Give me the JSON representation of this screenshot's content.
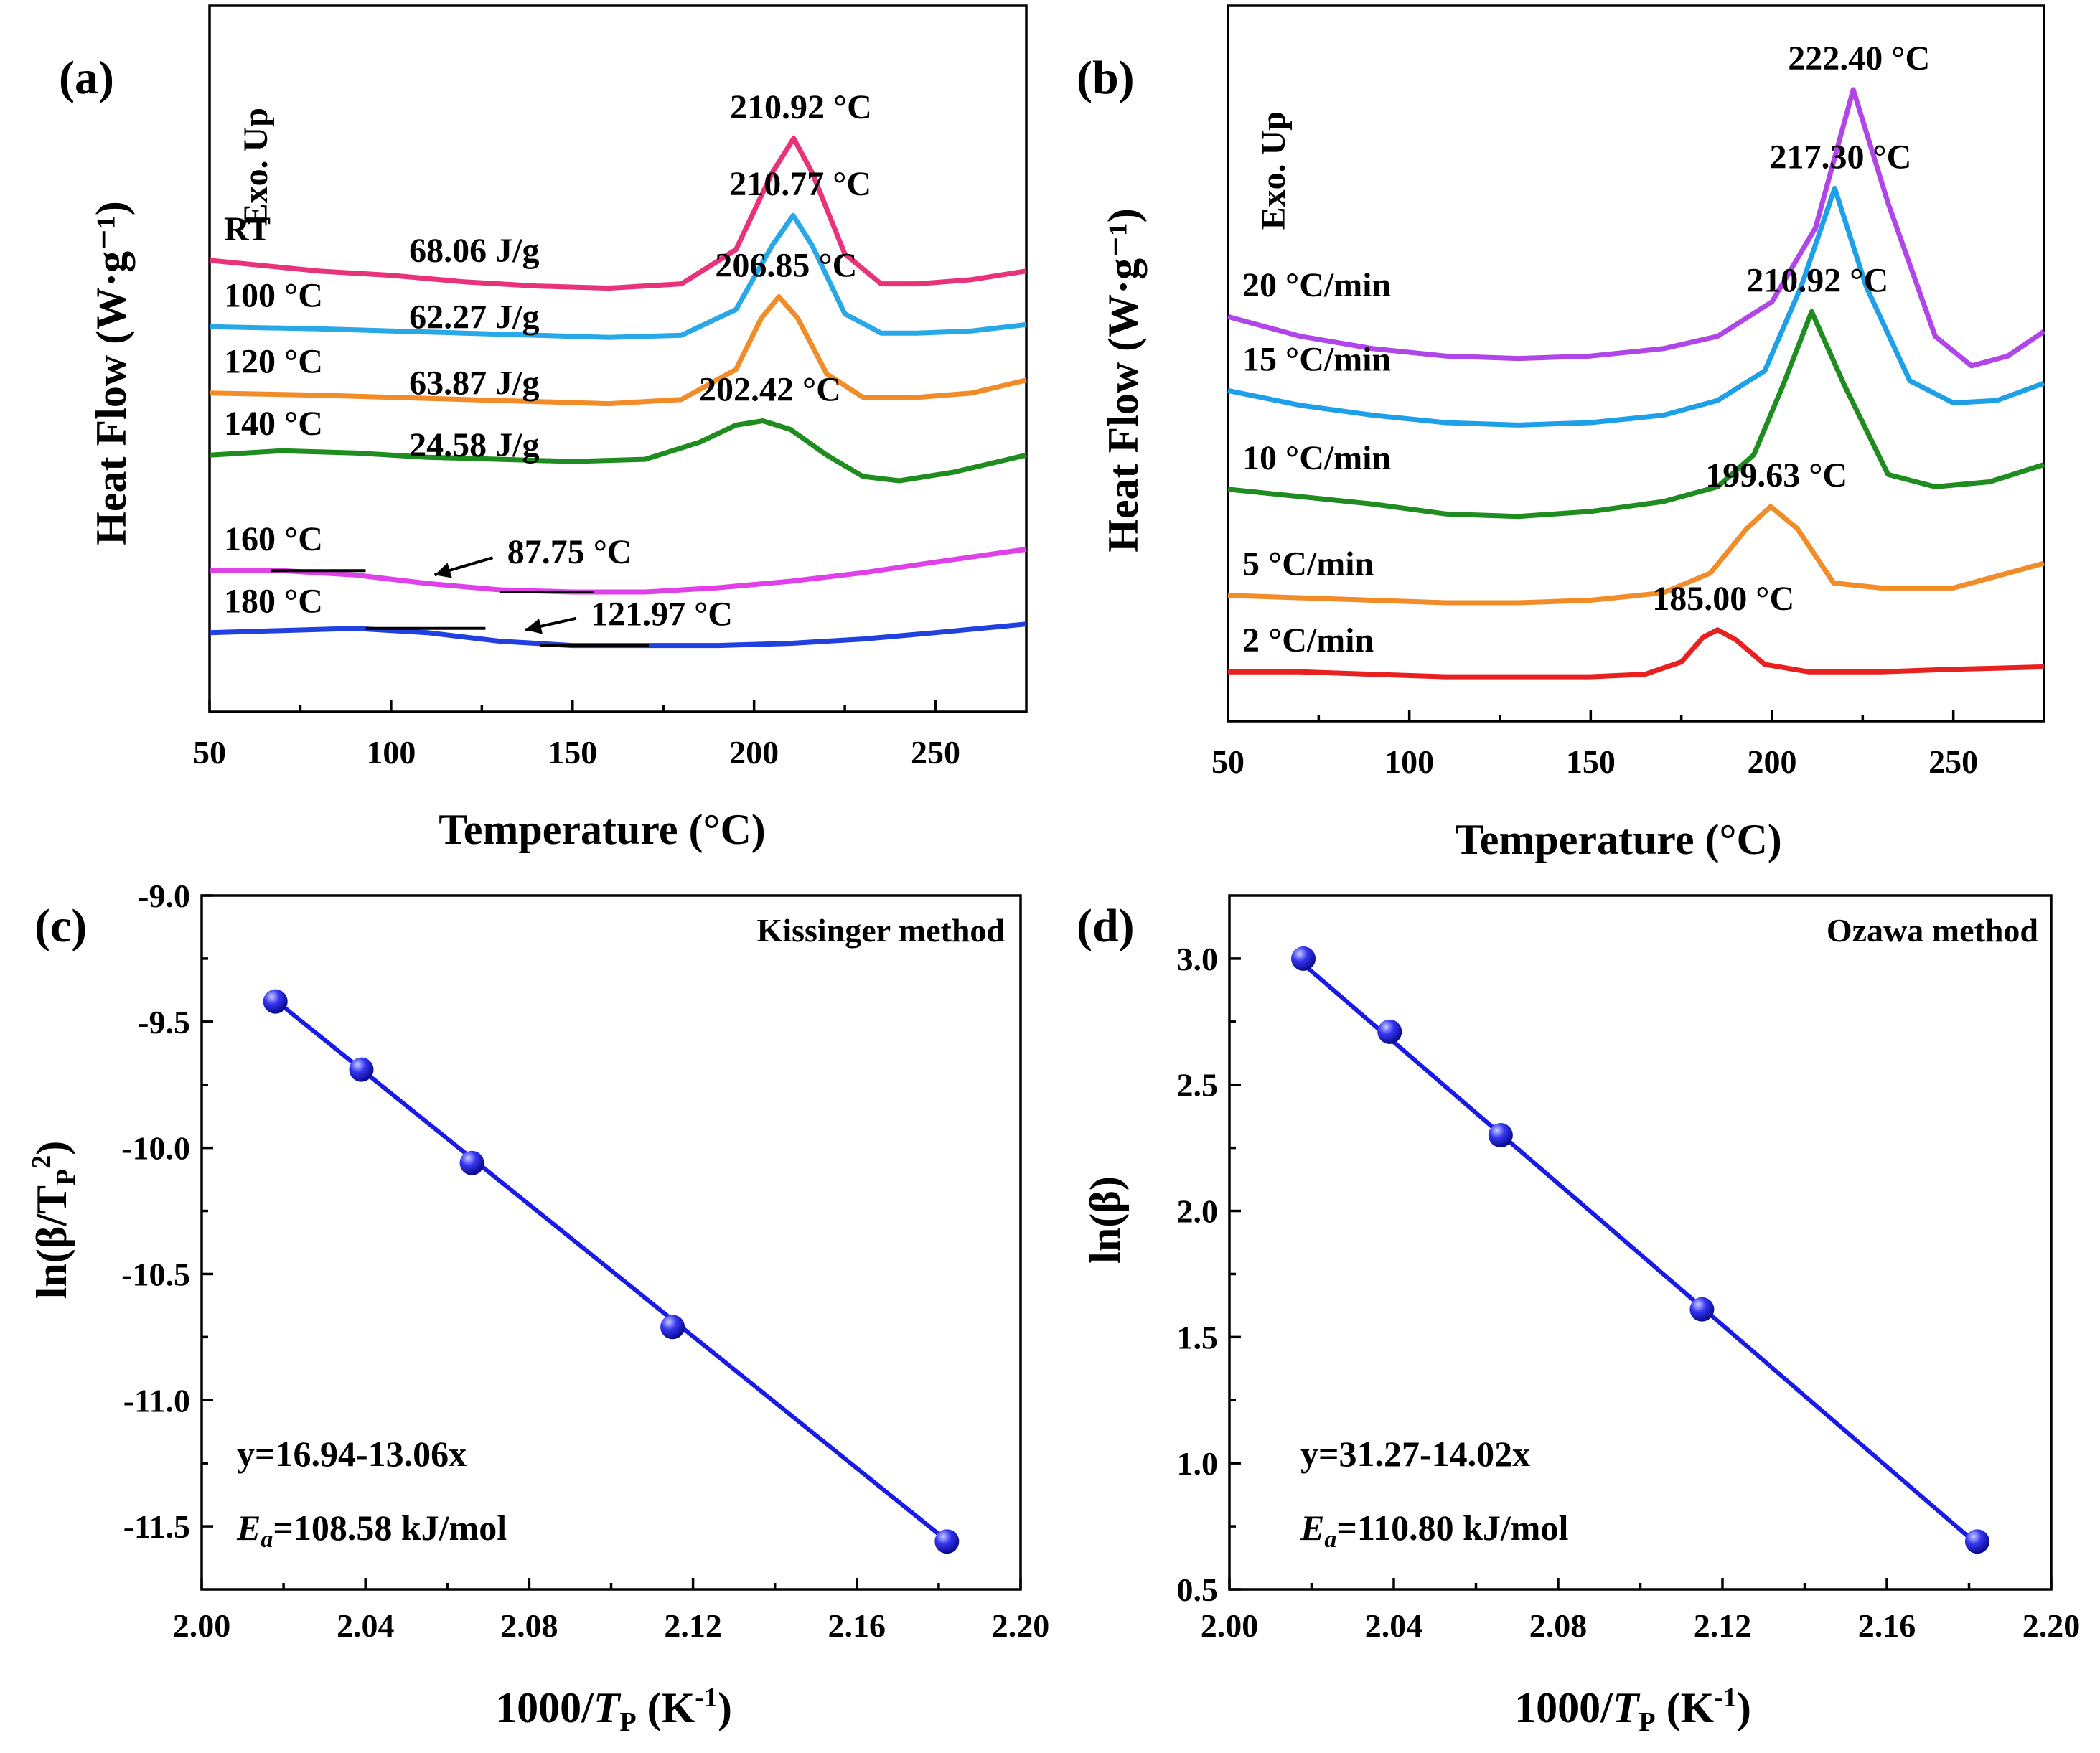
{
  "chart_data": [
    {
      "panel": "(a)",
      "type": "line",
      "xlabel": "Temperature (°C)",
      "ylabel": "Heat Flow (W·g⁻¹)",
      "xlim": [
        50,
        275
      ],
      "xticks": [
        50,
        100,
        150,
        200,
        250
      ],
      "corner_text": "Exo. Up",
      "series": [
        {
          "name": "RT",
          "color": "#e8337a",
          "peak_T": 210.92,
          "peak_label": "210.92 °C",
          "enthalpy_label": "68.06 J/g",
          "x": [
            50,
            80,
            100,
            120,
            140,
            160,
            180,
            195,
            205,
            210.92,
            216,
            225,
            235,
            245,
            260,
            275
          ],
          "y": [
            0.555,
            0.53,
            0.52,
            0.505,
            0.495,
            0.49,
            0.5,
            0.58,
            0.76,
            0.84,
            0.76,
            0.57,
            0.5,
            0.5,
            0.51,
            0.53
          ]
        },
        {
          "name": "100 °C",
          "color": "#29a8e8",
          "peak_T": 210.77,
          "peak_label": "210.77 °C",
          "enthalpy_label": "62.27 J/g",
          "x": [
            50,
            80,
            100,
            120,
            140,
            160,
            180,
            195,
            205,
            210.77,
            216,
            225,
            235,
            245,
            260,
            275
          ],
          "y": [
            0.4,
            0.395,
            0.39,
            0.385,
            0.38,
            0.375,
            0.38,
            0.44,
            0.59,
            0.66,
            0.59,
            0.43,
            0.385,
            0.385,
            0.39,
            0.405
          ]
        },
        {
          "name": "120 °C",
          "color": "#f28c28",
          "peak_T": 206.85,
          "peak_label": "206.85 °C",
          "enthalpy_label": "63.87 J/g",
          "x": [
            50,
            80,
            100,
            120,
            140,
            160,
            180,
            195,
            202,
            206.85,
            212,
            220,
            230,
            245,
            260,
            275
          ],
          "y": [
            0.245,
            0.24,
            0.235,
            0.23,
            0.225,
            0.22,
            0.23,
            0.3,
            0.42,
            0.47,
            0.42,
            0.29,
            0.235,
            0.235,
            0.245,
            0.275
          ]
        },
        {
          "name": "140 °C",
          "color": "#1e8c1e",
          "peak_T": 202.42,
          "peak_label": "202.42 °C",
          "enthalpy_label": "24.58 J/g",
          "x": [
            50,
            70,
            90,
            110,
            130,
            150,
            170,
            185,
            195,
            202.42,
            210,
            220,
            230,
            240,
            255,
            275
          ],
          "y": [
            0.1,
            0.11,
            0.105,
            0.095,
            0.09,
            0.085,
            0.09,
            0.13,
            0.17,
            0.18,
            0.16,
            0.1,
            0.05,
            0.04,
            0.06,
            0.1
          ]
        },
        {
          "name": "160 °C",
          "color": "#e040e8",
          "tg_label": "87.75 °C",
          "x": [
            50,
            70,
            90,
            110,
            130,
            150,
            170,
            190,
            210,
            230,
            250,
            275
          ],
          "y": [
            -0.17,
            -0.17,
            -0.18,
            -0.2,
            -0.215,
            -0.22,
            -0.22,
            -0.21,
            -0.195,
            -0.175,
            -0.15,
            -0.12
          ]
        },
        {
          "name": "180 °C",
          "color": "#2040e0",
          "tg_label": "121.97 °C",
          "x": [
            50,
            70,
            90,
            110,
            130,
            150,
            170,
            190,
            210,
            230,
            250,
            275
          ],
          "y": [
            -0.315,
            -0.31,
            -0.305,
            -0.315,
            -0.335,
            -0.345,
            -0.345,
            -0.345,
            -0.34,
            -0.33,
            -0.315,
            -0.295
          ]
        }
      ]
    },
    {
      "panel": "(b)",
      "type": "line",
      "xlabel": "Temperature (°C)",
      "ylabel": "Heat Flow (W·g⁻¹)",
      "xlim": [
        50,
        275
      ],
      "xticks": [
        50,
        100,
        150,
        200,
        250
      ],
      "corner_text": "Exo. Up",
      "series": [
        {
          "name": "20 °C/min",
          "color": "#b046e8",
          "peak_T": 222.4,
          "peak_label": "222.40 °C",
          "x": [
            50,
            70,
            90,
            110,
            130,
            150,
            170,
            185,
            200,
            212,
            222.4,
            232,
            245,
            255,
            265,
            275
          ],
          "y": [
            0.72,
            0.68,
            0.655,
            0.64,
            0.635,
            0.64,
            0.655,
            0.68,
            0.75,
            0.9,
            1.18,
            0.95,
            0.68,
            0.62,
            0.64,
            0.69
          ]
        },
        {
          "name": "15 °C/min",
          "color": "#1ea0e8",
          "peak_T": 217.3,
          "peak_label": "217.30 °C",
          "x": [
            50,
            70,
            90,
            110,
            130,
            150,
            170,
            185,
            198,
            208,
            217.3,
            226,
            238,
            250,
            262,
            275
          ],
          "y": [
            0.57,
            0.54,
            0.52,
            0.505,
            0.5,
            0.505,
            0.52,
            0.55,
            0.61,
            0.78,
            0.98,
            0.78,
            0.59,
            0.545,
            0.55,
            0.585
          ]
        },
        {
          "name": "10 °C/min",
          "color": "#1e8c1e",
          "peak_T": 210.92,
          "peak_label": "210.92 °C",
          "x": [
            50,
            70,
            90,
            110,
            130,
            150,
            170,
            185,
            195,
            203,
            210.92,
            220,
            232,
            245,
            260,
            275
          ],
          "y": [
            0.37,
            0.355,
            0.34,
            0.32,
            0.315,
            0.325,
            0.345,
            0.375,
            0.44,
            0.58,
            0.73,
            0.58,
            0.4,
            0.375,
            0.385,
            0.42
          ]
        },
        {
          "name": "5 °C/min",
          "color": "#f28c28",
          "peak_T": 199.63,
          "peak_label": "199.63 °C",
          "x": [
            50,
            70,
            90,
            110,
            130,
            150,
            170,
            183,
            193,
            199.63,
            207,
            217,
            230,
            250,
            275
          ],
          "y": [
            0.155,
            0.15,
            0.145,
            0.14,
            0.14,
            0.145,
            0.16,
            0.2,
            0.29,
            0.335,
            0.29,
            0.18,
            0.17,
            0.17,
            0.22
          ]
        },
        {
          "name": "2 °C/min",
          "color": "#e82020",
          "peak_T": 185.0,
          "peak_label": "185.00 °C",
          "x": [
            50,
            70,
            90,
            110,
            130,
            150,
            165,
            175,
            181,
            185,
            190,
            198,
            210,
            230,
            250,
            275
          ],
          "y": [
            0.0,
            0.0,
            -0.005,
            -0.01,
            -0.01,
            -0.01,
            -0.005,
            0.02,
            0.07,
            0.085,
            0.065,
            0.015,
            0.0,
            0.0,
            0.005,
            0.01
          ]
        }
      ]
    },
    {
      "panel": "(c)",
      "type": "scatter",
      "title": "Kissinger method",
      "xlabel": "1000/T_P (K⁻¹)",
      "ylabel": "ln(β/T_P²)",
      "xlim": [
        2.0,
        2.2
      ],
      "ylim": [
        -11.75,
        -9.0
      ],
      "xticks": [
        "2.00",
        "2.04",
        "2.08",
        "2.12",
        "2.16",
        "2.20"
      ],
      "yticks": [
        "-9.0",
        "-9.5",
        "-10.0",
        "-10.5",
        "-11.0",
        "-11.5"
      ],
      "fit": {
        "intercept": 16.94,
        "slope": -13.06
      },
      "equation": "y=16.94-13.06x",
      "ea_label": "=108.58 kJ/mol",
      "color": "#1a1ae6",
      "x": [
        2.018,
        2.039,
        2.066,
        2.115,
        2.182
      ],
      "y": [
        -9.42,
        -9.69,
        -10.06,
        -10.71,
        -11.56
      ]
    },
    {
      "panel": "(d)",
      "type": "scatter",
      "title": "Ozawa method",
      "xlabel": "1000/T_P (K⁻¹)",
      "ylabel": "ln(β)",
      "xlim": [
        2.0,
        2.2
      ],
      "ylim": [
        0.5,
        3.25
      ],
      "xticks": [
        "2.00",
        "2.04",
        "2.08",
        "2.12",
        "2.16",
        "2.20"
      ],
      "yticks": [
        "0.5",
        "1.0",
        "1.5",
        "2.0",
        "2.5",
        "3.0"
      ],
      "fit": {
        "intercept": 31.27,
        "slope": -14.02
      },
      "equation": "y=31.27-14.02x",
      "ea_label": "=110.80 kJ/mol",
      "color": "#1a1ae6",
      "x": [
        2.018,
        2.039,
        2.066,
        2.115,
        2.182
      ],
      "y": [
        3.0,
        2.71,
        2.3,
        1.61,
        0.69
      ]
    }
  ]
}
